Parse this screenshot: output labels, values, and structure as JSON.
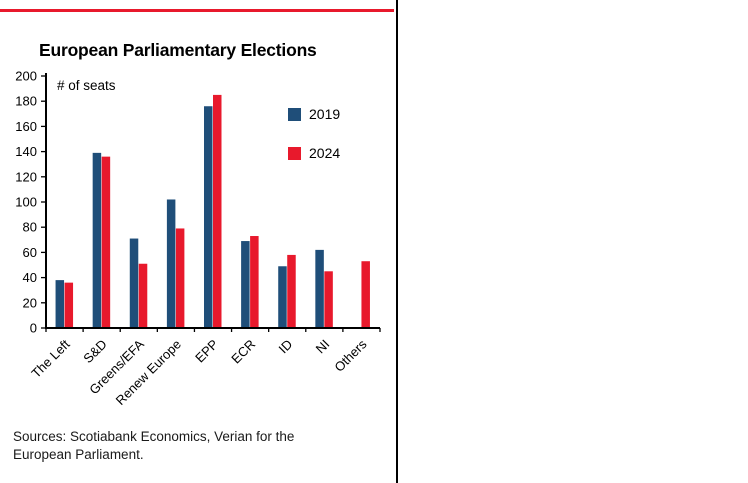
{
  "source": "Sources: Scotiabank Economics, Verian for the European Parliament.",
  "colors": {
    "rule_red": "#e8192c",
    "axis_black": "#000000"
  },
  "chart_data": {
    "type": "bar",
    "title": "European Parliamentary Elections",
    "ylabel": "# of seats",
    "xlabel": "",
    "ylim": [
      0,
      200
    ],
    "ytick_step": 20,
    "grid": false,
    "legend_position": "upper right",
    "categories": [
      "The Left",
      "S&D",
      "Greens/EFA",
      "Renew Europe",
      "EPP",
      "ECR",
      "ID",
      "NI",
      "Others"
    ],
    "series": [
      {
        "name": "2019",
        "color": "#1f4e79",
        "values": [
          38,
          139,
          71,
          102,
          176,
          69,
          49,
          62,
          null
        ]
      },
      {
        "name": "2024",
        "color": "#e8192c",
        "values": [
          36,
          136,
          51,
          79,
          185,
          73,
          58,
          45,
          53
        ]
      }
    ]
  }
}
